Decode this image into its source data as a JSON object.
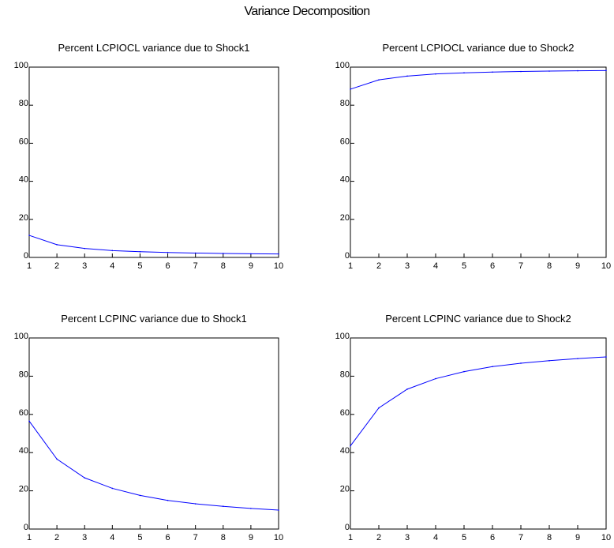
{
  "title": "Variance Decomposition",
  "chart_data": [
    {
      "type": "line",
      "title": "Percent LCPIOCL variance due to Shock1",
      "x": [
        1,
        2,
        3,
        4,
        5,
        6,
        7,
        8,
        9,
        10
      ],
      "series": [
        {
          "values": [
            11.6,
            6.7,
            4.7,
            3.6,
            3.0,
            2.6,
            2.3,
            2.1,
            1.9,
            1.8
          ]
        }
      ],
      "xlim": [
        1,
        10
      ],
      "ylim": [
        0,
        100
      ],
      "xticks": [
        1,
        2,
        3,
        4,
        5,
        6,
        7,
        8,
        9,
        10
      ],
      "yticks": [
        0,
        20,
        40,
        60,
        80,
        100
      ],
      "line_color": "#0000ff",
      "grid": false
    },
    {
      "type": "line",
      "title": "Percent LCPIOCL variance due to Shock2",
      "x": [
        1,
        2,
        3,
        4,
        5,
        6,
        7,
        8,
        9,
        10
      ],
      "series": [
        {
          "values": [
            88.4,
            93.3,
            95.3,
            96.4,
            97.0,
            97.4,
            97.7,
            97.9,
            98.1,
            98.2
          ]
        }
      ],
      "xlim": [
        1,
        10
      ],
      "ylim": [
        0,
        100
      ],
      "xticks": [
        1,
        2,
        3,
        4,
        5,
        6,
        7,
        8,
        9,
        10
      ],
      "yticks": [
        0,
        20,
        40,
        60,
        80,
        100
      ],
      "line_color": "#0000ff",
      "grid": false
    },
    {
      "type": "line",
      "title": "Percent LCPINC variance due to Shock1",
      "x": [
        1,
        2,
        3,
        4,
        5,
        6,
        7,
        8,
        9,
        10
      ],
      "series": [
        {
          "values": [
            56.5,
            36.6,
            26.8,
            21.3,
            17.6,
            15.0,
            13.2,
            11.9,
            10.8,
            9.9
          ]
        }
      ],
      "xlim": [
        1,
        10
      ],
      "ylim": [
        0,
        100
      ],
      "xticks": [
        1,
        2,
        3,
        4,
        5,
        6,
        7,
        8,
        9,
        10
      ],
      "yticks": [
        0,
        20,
        40,
        60,
        80,
        100
      ],
      "line_color": "#0000ff",
      "grid": false
    },
    {
      "type": "line",
      "title": "Percent LCPINC variance due to Shock2",
      "x": [
        1,
        2,
        3,
        4,
        5,
        6,
        7,
        8,
        9,
        10
      ],
      "series": [
        {
          "values": [
            43.5,
            63.4,
            73.2,
            78.7,
            82.4,
            85.0,
            86.8,
            88.1,
            89.2,
            90.1
          ]
        }
      ],
      "xlim": [
        1,
        10
      ],
      "ylim": [
        0,
        100
      ],
      "xticks": [
        1,
        2,
        3,
        4,
        5,
        6,
        7,
        8,
        9,
        10
      ],
      "yticks": [
        0,
        20,
        40,
        60,
        80,
        100
      ],
      "line_color": "#0000ff",
      "grid": false
    }
  ]
}
